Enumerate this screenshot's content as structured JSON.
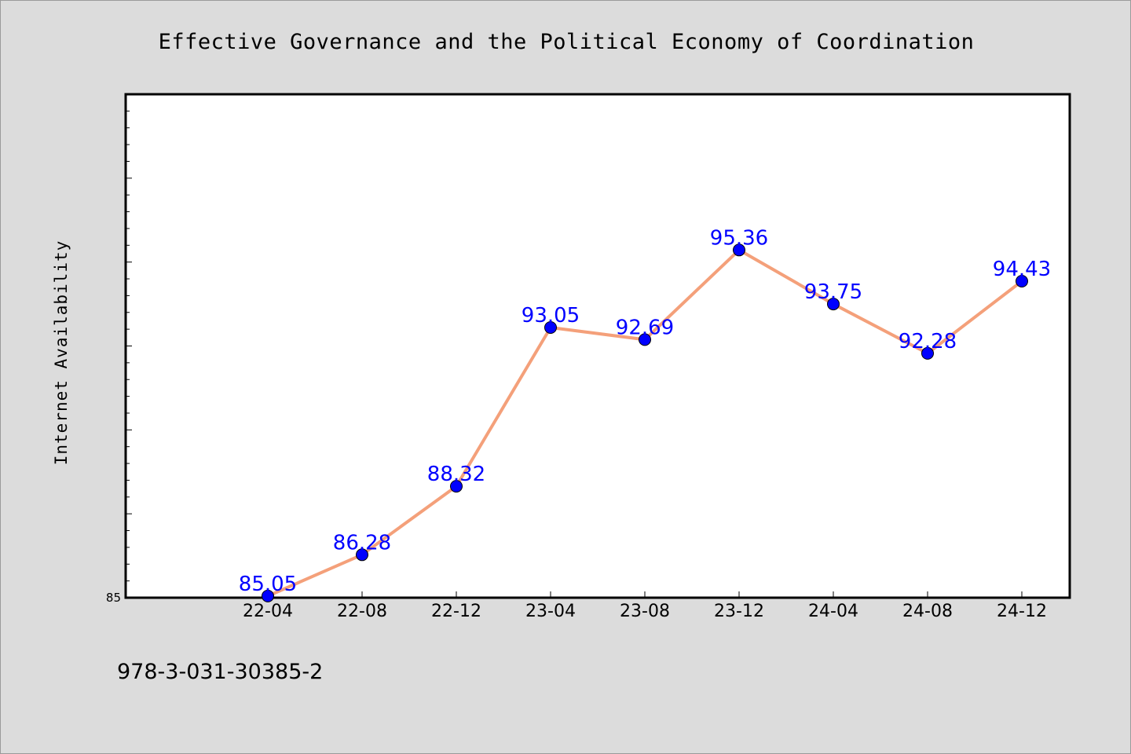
{
  "chart_data": {
    "type": "line",
    "title": "Effective Governance and the Political Economy of Coordination",
    "xlabel": "",
    "ylabel": "Internet Availability",
    "categories": [
      "22-04",
      "22-08",
      "22-12",
      "23-04",
      "23-08",
      "23-12",
      "24-04",
      "24-08",
      "24-12"
    ],
    "series": [
      {
        "values": [
          85.05,
          86.28,
          88.32,
          93.05,
          92.69,
          95.36,
          93.75,
          92.28,
          94.43
        ],
        "labels": [
          "85.05",
          "86.28",
          "88.32",
          "93.05",
          "92.69",
          "95.36",
          "93.75",
          "92.28",
          "94.43"
        ],
        "line_color": "#f4a07a",
        "marker_color": "#0000ff"
      }
    ],
    "ylim": [
      85,
      100
    ],
    "ytick_labels": [
      "85"
    ],
    "grid": false,
    "data_labels": true
  },
  "footer": {
    "isbn": "978-3-031-30385-2"
  },
  "colors": {
    "background": "#dcdcdc",
    "plot_background": "#ffffff",
    "label_color": "#0000ff"
  }
}
